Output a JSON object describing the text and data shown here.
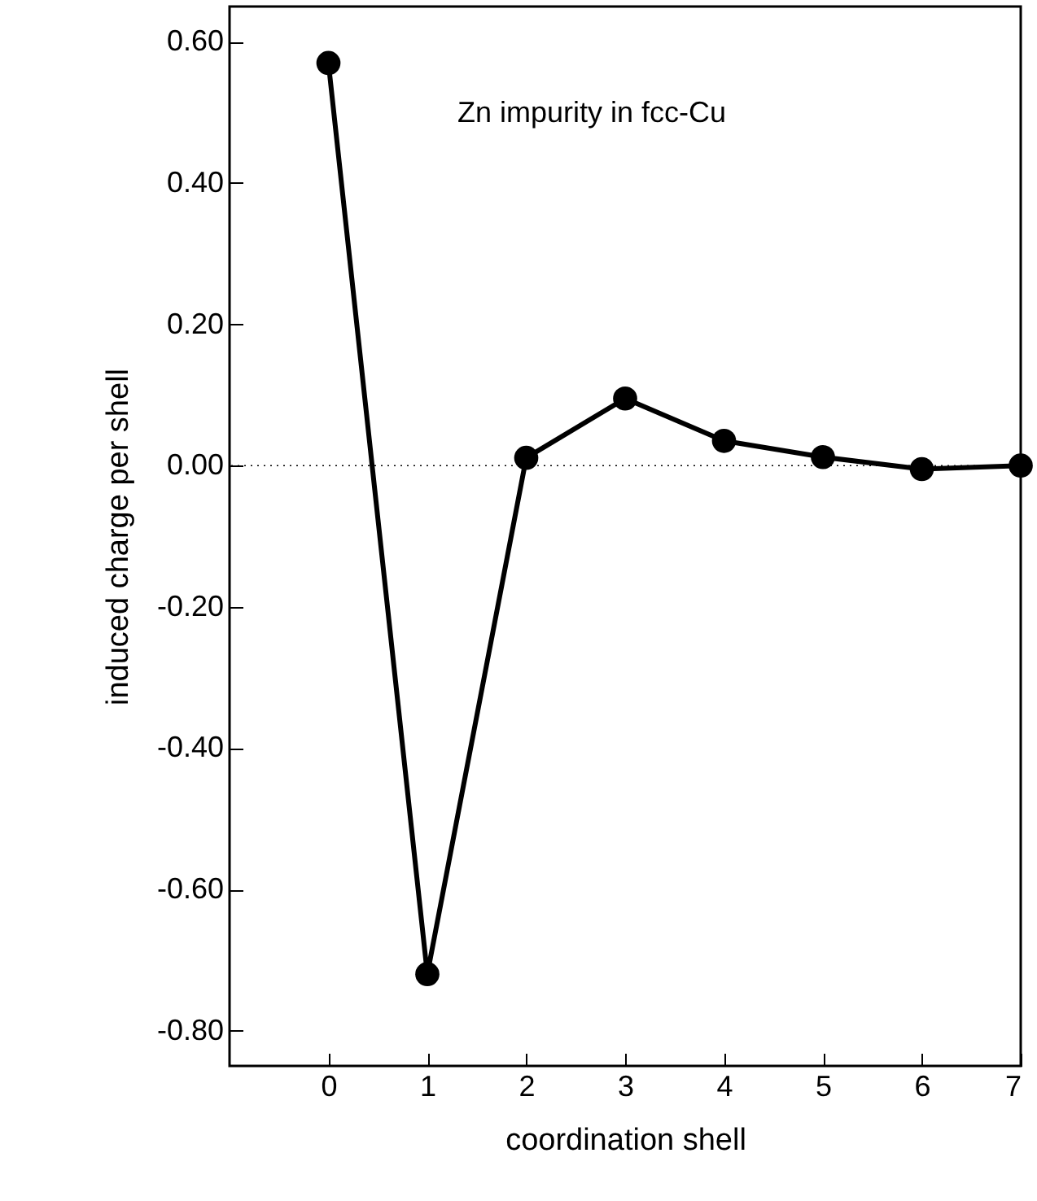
{
  "chart_data": {
    "type": "line",
    "xlabel": "coordination shell",
    "ylabel": "induced charge per shell",
    "annotations": [
      "Zn impurity in fcc-Cu"
    ],
    "x": [
      0,
      1,
      2,
      3,
      4,
      5,
      6,
      7
    ],
    "series": [
      {
        "color": "#000000",
        "values": [
          0.57,
          -0.72,
          0.011,
          0.095,
          0.035,
          0.012,
          -0.005,
          0.0
        ]
      }
    ],
    "xlim": [
      -1,
      7
    ],
    "xticks": [
      0,
      1,
      2,
      3,
      4,
      5,
      6,
      7
    ],
    "ylim": [
      -0.85,
      0.65
    ],
    "yticks": [
      {
        "value": 0.6,
        "label": "0.60"
      },
      {
        "value": 0.4,
        "label": "0.40"
      },
      {
        "value": 0.2,
        "label": "0.20"
      },
      {
        "value": 0,
        "label": "0.00"
      },
      {
        "value": -0.2,
        "label": "-0.20"
      },
      {
        "value": -0.4,
        "label": "-0.40"
      },
      {
        "value": -0.6,
        "label": "-0.60"
      },
      {
        "value": -0.8,
        "label": "-0.80"
      }
    ],
    "ref_lines": [
      {
        "axis": "y",
        "value": 0,
        "line_style": "dotted",
        "color": "#000000"
      }
    ],
    "marker": "circle",
    "line_style": "solid",
    "grid": false
  }
}
